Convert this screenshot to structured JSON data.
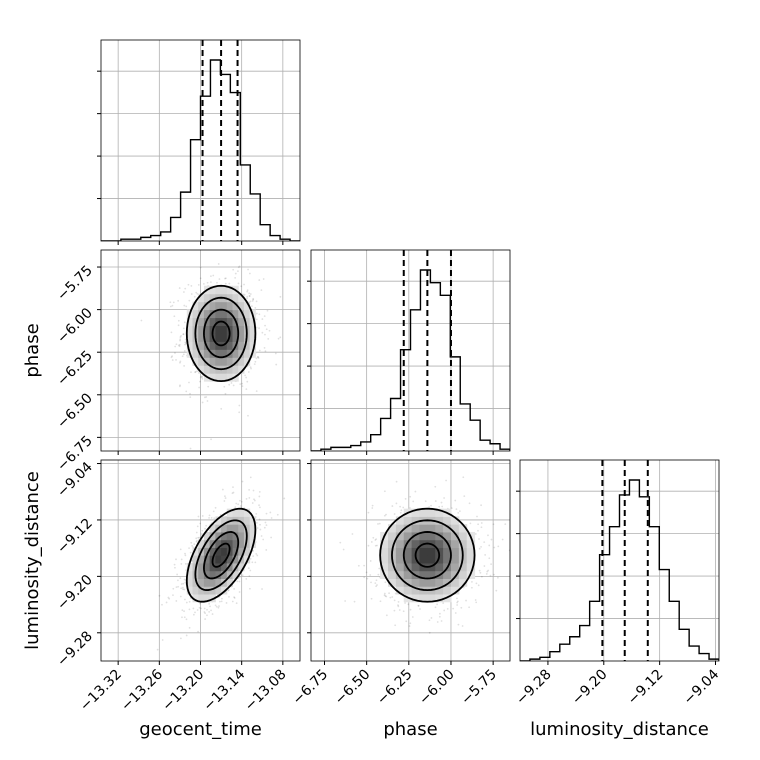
{
  "chart_data": {
    "type": "corner",
    "parameters": [
      {
        "name": "geocent_time",
        "range": [
          -13.345,
          -13.055
        ],
        "ticks": [
          -13.32,
          -13.26,
          -13.2,
          -13.14,
          -13.08
        ],
        "tick_labels": [
          "−13.32",
          "−13.26",
          "−13.20",
          "−13.14",
          "−13.08"
        ],
        "median": -13.17,
        "q16": -13.197,
        "q84": -13.146,
        "sigma": 0.025
      },
      {
        "name": "phase",
        "range": [
          -6.83,
          -5.65
        ],
        "ticks": [
          -6.75,
          -6.5,
          -6.25,
          -6.0,
          -5.75
        ],
        "tick_labels": [
          "−6.75",
          "−6.50",
          "−6.25",
          "−6.00",
          "−5.75"
        ],
        "median": -6.14,
        "q16": -6.28,
        "q84": -6.0,
        "sigma": 0.14
      },
      {
        "name": "luminosity_distance",
        "range": [
          -9.32,
          -9.035
        ],
        "ticks": [
          -9.28,
          -9.2,
          -9.12,
          -9.04
        ],
        "tick_labels": [
          "−9.28",
          "−9.20",
          "−9.12",
          "−9.04"
        ],
        "median": -9.17,
        "q16": -9.202,
        "q84": -9.137,
        "sigma": 0.033
      }
    ],
    "histograms": {
      "geocent_time": [
        0.0,
        0.0,
        0.01,
        0.01,
        0.02,
        0.03,
        0.05,
        0.13,
        0.27,
        0.56,
        0.8,
        1.0,
        0.92,
        0.82,
        0.42,
        0.26,
        0.09,
        0.03,
        0.01,
        0.0
      ],
      "phase": [
        0.0,
        0.01,
        0.02,
        0.02,
        0.03,
        0.05,
        0.09,
        0.18,
        0.29,
        0.56,
        0.78,
        1.0,
        0.93,
        0.86,
        0.52,
        0.26,
        0.17,
        0.06,
        0.04,
        0.01
      ],
      "luminosity_distance": [
        0.0,
        0.01,
        0.02,
        0.05,
        0.09,
        0.13,
        0.19,
        0.32,
        0.57,
        0.72,
        0.89,
        0.97,
        0.88,
        0.72,
        0.49,
        0.32,
        0.17,
        0.08,
        0.04,
        0.01
      ]
    },
    "correlations": {
      "geocent_time|phase": 0.0,
      "geocent_time|luminosity_distance": 0.55,
      "phase|luminosity_distance": 0.0
    },
    "contour_levels_sigma": [
      0.5,
      1.0,
      1.5,
      2.0
    ],
    "grid": true
  }
}
